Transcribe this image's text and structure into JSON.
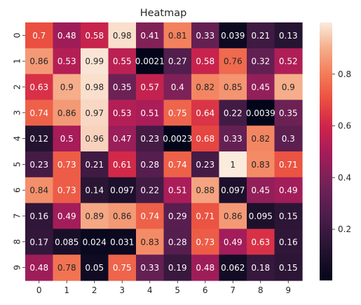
{
  "chart_data": {
    "type": "heatmap",
    "title": "Heatmap",
    "xlabel": "",
    "ylabel": "",
    "x_categories": [
      "0",
      "1",
      "2",
      "3",
      "4",
      "5",
      "6",
      "7",
      "8",
      "9"
    ],
    "y_categories": [
      "0",
      "1",
      "2",
      "3",
      "4",
      "5",
      "6",
      "7",
      "8",
      "9"
    ],
    "values": [
      [
        0.7,
        0.48,
        0.58,
        0.98,
        0.41,
        0.81,
        0.33,
        0.039,
        0.21,
        0.13
      ],
      [
        0.86,
        0.53,
        0.99,
        0.55,
        0.0021,
        0.27,
        0.58,
        0.76,
        0.32,
        0.52
      ],
      [
        0.63,
        0.9,
        0.98,
        0.35,
        0.57,
        0.4,
        0.82,
        0.85,
        0.45,
        0.9
      ],
      [
        0.74,
        0.86,
        0.97,
        0.53,
        0.51,
        0.75,
        0.64,
        0.22,
        0.0039,
        0.35
      ],
      [
        0.12,
        0.5,
        0.96,
        0.47,
        0.23,
        0.0023,
        0.68,
        0.33,
        0.82,
        0.3
      ],
      [
        0.23,
        0.73,
        0.21,
        0.61,
        0.28,
        0.74,
        0.23,
        1,
        0.83,
        0.71
      ],
      [
        0.84,
        0.73,
        0.14,
        0.097,
        0.22,
        0.51,
        0.88,
        0.097,
        0.45,
        0.49
      ],
      [
        0.16,
        0.49,
        0.89,
        0.86,
        0.74,
        0.29,
        0.71,
        0.86,
        0.095,
        0.15
      ],
      [
        0.17,
        0.085,
        0.024,
        0.031,
        0.83,
        0.28,
        0.73,
        0.49,
        0.63,
        0.16
      ],
      [
        0.48,
        0.78,
        0.05,
        0.75,
        0.33,
        0.19,
        0.48,
        0.062,
        0.18,
        0.15
      ]
    ],
    "colormap": "rocket",
    "annotate": true,
    "colorbar": {
      "range": [
        0.0021,
        1
      ],
      "ticks": [
        0.2,
        0.4,
        0.6,
        0.8
      ],
      "tick_labels": [
        "0.2",
        "0.4",
        "0.6",
        "0.8"
      ],
      "placement": "right"
    },
    "grid": false
  }
}
